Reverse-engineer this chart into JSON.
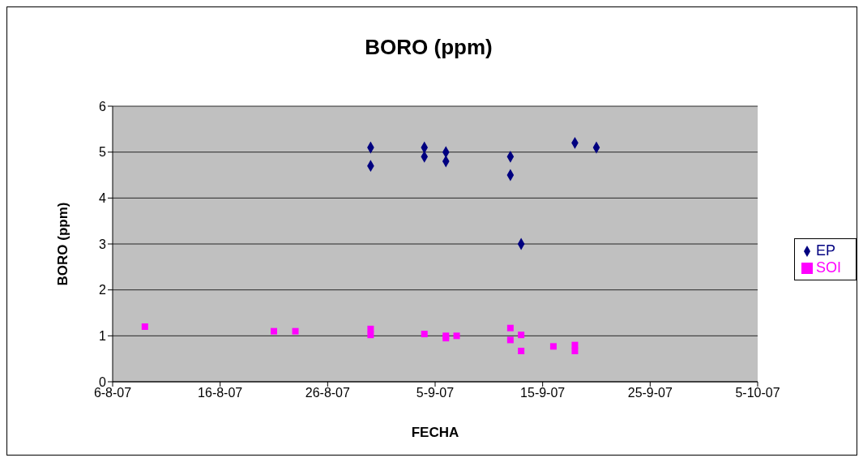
{
  "chart_data": {
    "type": "scatter",
    "title": "BORO (ppm)",
    "xlabel": "FECHA",
    "ylabel": "BORO (ppm)",
    "xlim": [
      "--08-06",
      "--10-05"
    ],
    "xticks": [
      {
        "value": "--08-06",
        "label": "6-8-07"
      },
      {
        "value": "--08-16",
        "label": "16-8-07"
      },
      {
        "value": "--08-26",
        "label": "26-8-07"
      },
      {
        "value": "--09-05",
        "label": "5-9-07"
      },
      {
        "value": "--09-15",
        "label": "15-9-07"
      },
      {
        "value": "--09-25",
        "label": "25-9-07"
      },
      {
        "value": "--10-05",
        "label": "5-10-07"
      }
    ],
    "ylim": [
      0,
      6
    ],
    "yticks": [
      0,
      1,
      2,
      3,
      4,
      5,
      6
    ],
    "grid": "y",
    "legend": "right",
    "series": [
      {
        "name": "EP",
        "color": "#000080",
        "marker": "diamond",
        "x": [
          "--08-30",
          "--08-30",
          "--09-04",
          "--09-04",
          "--09-06",
          "--09-06",
          "--09-12",
          "--09-12",
          "--09-13",
          "--09-18",
          "--09-20"
        ],
        "values": [
          5.1,
          4.7,
          5.1,
          4.9,
          5.0,
          4.8,
          4.9,
          4.5,
          3.0,
          5.2,
          5.1
        ]
      },
      {
        "name": "SOI",
        "color": "#ff00ff",
        "marker": "square",
        "x": [
          "--08-09",
          "--08-21",
          "--08-23",
          "--08-30",
          "--08-30",
          "--09-04",
          "--09-06",
          "--09-06",
          "--09-07",
          "--09-12",
          "--09-12",
          "--09-13",
          "--09-13",
          "--09-16",
          "--09-18",
          "--09-18"
        ],
        "values": [
          1.2,
          1.1,
          1.1,
          1.15,
          1.02,
          1.04,
          1.0,
          0.95,
          1.0,
          1.17,
          0.91,
          1.02,
          0.67,
          0.77,
          0.8,
          0.67
        ]
      }
    ]
  }
}
